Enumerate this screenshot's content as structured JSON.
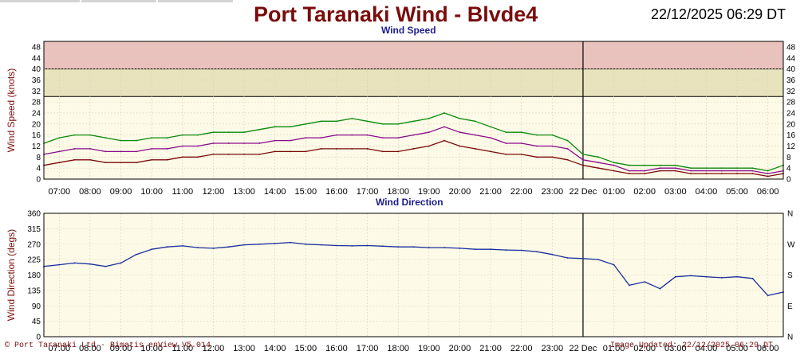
{
  "header": {
    "title": "Port Taranaki Wind - Blvde4",
    "timestamp": "22/12/2025 06:29 DT"
  },
  "footer": {
    "left": "© Port Taranaki Ltd - Bimatis enView V5.014",
    "right": "Image Updated: 22/12/2025 06:29 DT"
  },
  "colors": {
    "background": "#ffffff",
    "plot_bg": "#fdfae8",
    "title": "#7a0c0c",
    "subtitle": "#1d1d8c",
    "band_high": "#e9c2bd",
    "band_mid": "#e9e3bd",
    "gust": "#0a8a0a",
    "mean": "#8a0a8a",
    "lull": "#7a0a0a",
    "direction": "#1a2f9e",
    "direction_spread": "#9fb6e6"
  },
  "time_axis": {
    "tick_labels": [
      "07:00",
      "08:00",
      "09:00",
      "10:00",
      "11:00",
      "12:00",
      "13:00",
      "14:00",
      "15:00",
      "16:00",
      "17:00",
      "18:00",
      "19:00",
      "20:00",
      "21:00",
      "22:00",
      "23:00",
      "22 Dec",
      "01:00",
      "02:00",
      "03:00",
      "04:00",
      "05:00",
      "06:00"
    ],
    "day_boundary_label": "22 Dec"
  },
  "chart_data": [
    {
      "type": "line",
      "title": "Wind Speed",
      "ylabel": "Wind Speed (knots)",
      "ylim": [
        0,
        50
      ],
      "y_ticks": [
        "0",
        "4",
        "8",
        "12",
        "16",
        "20",
        "24",
        "28",
        "32",
        "36",
        "40",
        "44",
        "48"
      ],
      "threshold_bands": [
        {
          "from": 30,
          "to": 40,
          "color": "#e9e3bd"
        },
        {
          "from": 40,
          "to": 50,
          "color": "#e9c2bd"
        }
      ],
      "x_unit": "hours since 06:30 on 21 Dec",
      "x": [
        0,
        0.5,
        1,
        1.5,
        2,
        2.5,
        3,
        3.5,
        4,
        4.5,
        5,
        5.5,
        6,
        6.5,
        7,
        7.5,
        8,
        8.5,
        9,
        9.5,
        10,
        10.5,
        11,
        11.5,
        12,
        12.5,
        13,
        13.5,
        14,
        14.5,
        15,
        15.5,
        16,
        16.5,
        17,
        17.5,
        18,
        18.5,
        19,
        19.5,
        20,
        20.5,
        21,
        21.5,
        22,
        22.5,
        23,
        23.5,
        24
      ],
      "series": [
        {
          "values": [
            13,
            15,
            16,
            16,
            15,
            14,
            14,
            15,
            15,
            16,
            16,
            17,
            17,
            17,
            18,
            19,
            19,
            20,
            21,
            21,
            22,
            21,
            20,
            20,
            21,
            22,
            24,
            22,
            21,
            19,
            17,
            17,
            16,
            16,
            14,
            9,
            8,
            6,
            5,
            5,
            5,
            5,
            4,
            4,
            4,
            4,
            4,
            3,
            5
          ]
        },
        {
          "values": [
            9,
            10,
            11,
            11,
            10,
            10,
            10,
            11,
            11,
            12,
            12,
            13,
            13,
            13,
            13,
            14,
            14,
            15,
            15,
            16,
            16,
            16,
            15,
            15,
            16,
            17,
            19,
            17,
            16,
            15,
            13,
            13,
            12,
            12,
            11,
            7,
            6,
            5,
            3,
            3,
            4,
            4,
            3,
            3,
            3,
            3,
            3,
            2,
            3
          ]
        },
        {
          "values": [
            5,
            6,
            7,
            7,
            6,
            6,
            6,
            7,
            7,
            8,
            8,
            9,
            9,
            9,
            9,
            10,
            10,
            10,
            11,
            11,
            11,
            11,
            10,
            10,
            11,
            12,
            14,
            12,
            11,
            10,
            9,
            9,
            8,
            8,
            7,
            5,
            4,
            3,
            2,
            2,
            3,
            3,
            2,
            2,
            2,
            2,
            2,
            1,
            2
          ]
        }
      ]
    },
    {
      "type": "line",
      "title": "Wind Direction",
      "ylabel": "Wind Direction (degs)",
      "ylim": [
        0,
        360
      ],
      "y_ticks": [
        "0",
        "45",
        "90",
        "135",
        "180",
        "225",
        "270",
        "315",
        "360"
      ],
      "y2_ticks": [
        "N",
        "E",
        "S",
        "W",
        "N"
      ],
      "x_unit": "hours since 06:30 on 21 Dec",
      "x": [
        0,
        0.5,
        1,
        1.5,
        2,
        2.5,
        3,
        3.5,
        4,
        4.5,
        5,
        5.5,
        6,
        6.5,
        7,
        7.5,
        8,
        8.5,
        9,
        9.5,
        10,
        10.5,
        11,
        11.5,
        12,
        12.5,
        13,
        13.5,
        14,
        14.5,
        15,
        15.5,
        16,
        16.5,
        17,
        17.5,
        18,
        18.5,
        19,
        19.5,
        20,
        20.5,
        21,
        21.5,
        22,
        22.5,
        23,
        23.5,
        24
      ],
      "series": [
        {
          "values": [
            205,
            210,
            215,
            212,
            205,
            215,
            240,
            255,
            262,
            265,
            260,
            258,
            262,
            268,
            270,
            272,
            275,
            270,
            268,
            266,
            265,
            266,
            264,
            262,
            262,
            260,
            260,
            258,
            255,
            255,
            253,
            252,
            248,
            240,
            230,
            228,
            225,
            210,
            150,
            160,
            140,
            175,
            178,
            175,
            172,
            175,
            170,
            120,
            130
          ]
        }
      ]
    }
  ]
}
